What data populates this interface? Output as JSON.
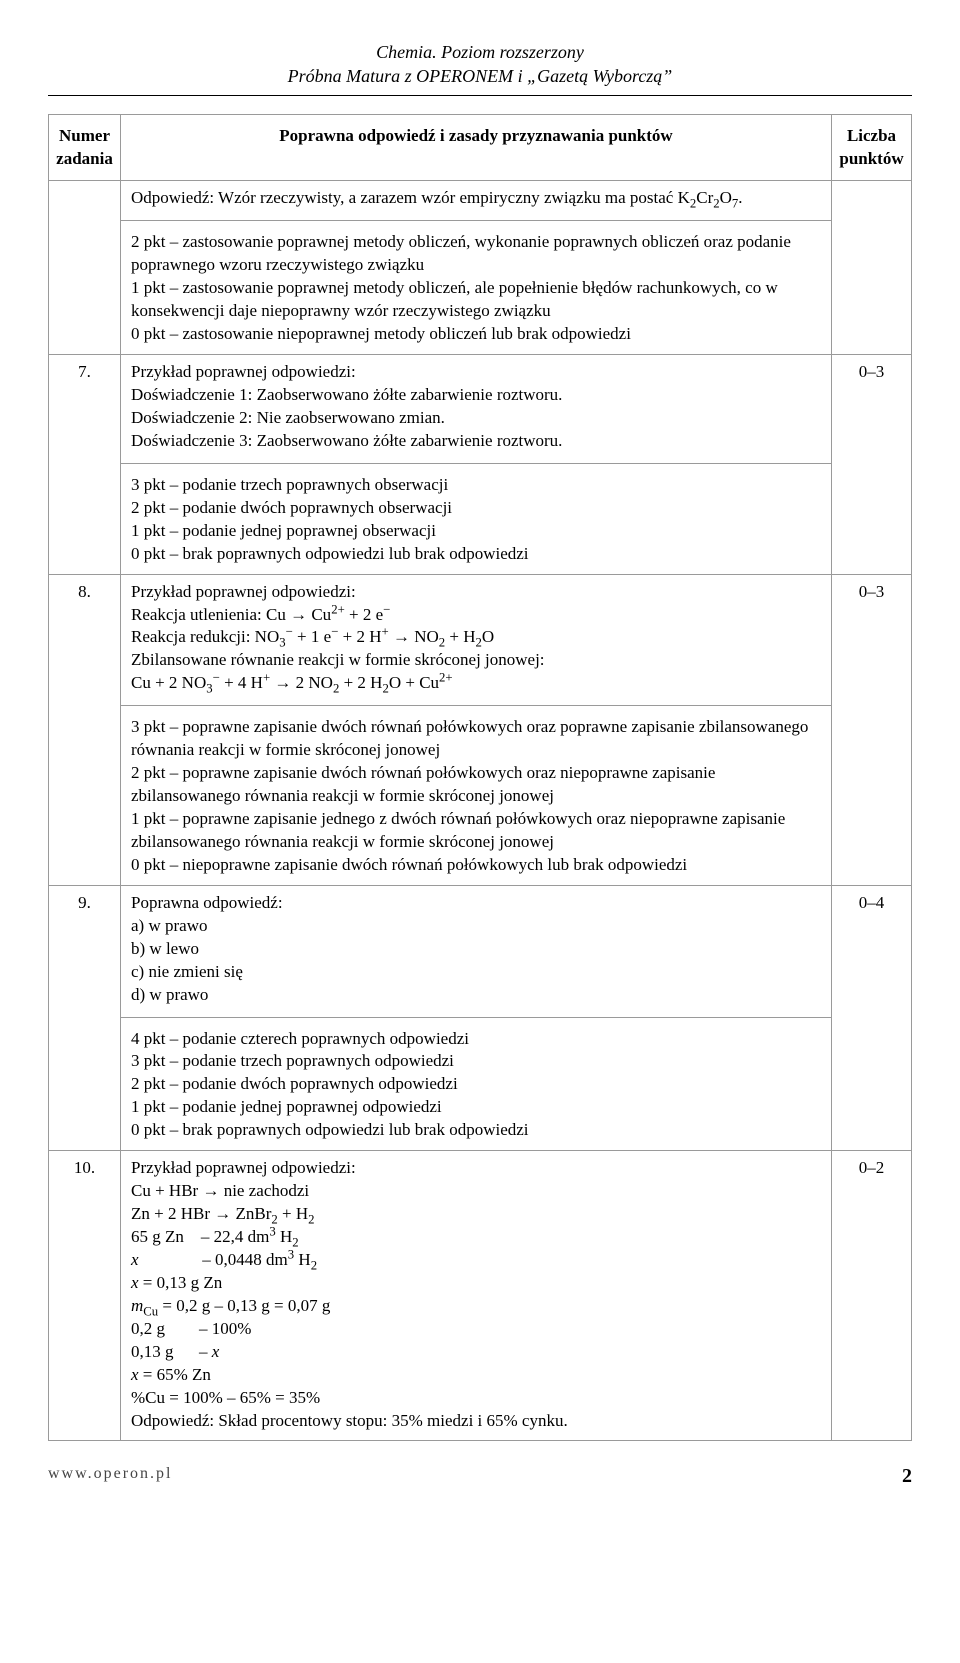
{
  "header": {
    "line1": "Chemia. Poziom rozszerzony",
    "line2": "Próbna Matura z OPERONEM i „Gazetą Wyborczą”"
  },
  "columns": {
    "num": "Numer zadania",
    "ans": "Poprawna odpowiedź i zasady przyznawania punktów",
    "pts": "Liczba punktów"
  },
  "rows": [
    {
      "num": "",
      "pts": "",
      "answer_html": "Odpowiedź: Wzór rzeczywisty, a zarazem wzór empiryczny związku ma postać K<sub>2</sub>Cr<sub>2</sub>O<sub>7</sub>.",
      "scoring_html": "2 pkt – zastosowanie poprawnej metody obliczeń, wykonanie poprawnych obliczeń oraz podanie poprawnego wzoru rzeczywistego związku<br>1 pkt – zastosowanie poprawnej metody obliczeń, ale popełnienie błędów rachunkowych, co w konsekwencji daje niepoprawny wzór rzeczywistego związku<br>0 pkt – zastosowanie niepoprawnej metody obliczeń lub brak odpowiedzi"
    },
    {
      "num": "7.",
      "pts": "0–3",
      "answer_html": "Przykład poprawnej odpowiedzi:<br>Doświadczenie 1: Zaobserwowano żółte zabarwienie roztworu.<br>Doświadczenie 2: Nie zaobserwowano zmian.<br>Doświadczenie 3: Zaobserwowano żółte zabarwienie roztworu.",
      "scoring_html": "3 pkt – podanie trzech poprawnych obserwacji<br>2 pkt – podanie dwóch poprawnych obserwacji<br>1 pkt – podanie jednej poprawnej obserwacji<br>0 pkt – brak poprawnych odpowiedzi lub brak odpowiedzi"
    },
    {
      "num": "8.",
      "pts": "0–3",
      "answer_html": "Przykład poprawnej odpowiedzi:<br>Reakcja utlenienia: Cu → Cu<sup>2+</sup> + 2 e<sup>−</sup><br>Reakcja redukcji: NO<sub>3</sub><sup>−</sup> + 1 e<sup>−</sup> + 2 H<sup>+</sup> → NO<sub>2</sub> + H<sub>2</sub>O<br>Zbilansowane równanie reakcji w formie skróconej jonowej:<br>Cu + 2 NO<sub>3</sub><sup>−</sup> + 4 H<sup>+</sup> → 2 NO<sub>2</sub> + 2 H<sub>2</sub>O + Cu<sup>2+</sup>",
      "scoring_html": "3 pkt – poprawne zapisanie dwóch równań połówkowych oraz poprawne zapisanie zbilansowanego równania reakcji w formie skróconej jonowej<br>2 pkt – poprawne zapisanie dwóch równań połówkowych oraz niepoprawne zapisanie zbilansowanego równania reakcji w formie skróconej jonowej<br>1 pkt – poprawne zapisanie jednego z dwóch równań połówkowych oraz niepoprawne zapisanie zbilansowanego równania reakcji w formie skróconej jonowej<br>0 pkt – niepoprawne zapisanie dwóch równań połówkowych lub brak odpowiedzi"
    },
    {
      "num": "9.",
      "pts": "0–4",
      "answer_html": "Poprawna odpowiedź:<br>a) w prawo<br>b) w lewo<br>c) nie zmieni się<br>d) w prawo",
      "scoring_html": "4 pkt – podanie czterech poprawnych odpowiedzi<br>3 pkt – podanie trzech poprawnych odpowiedzi<br>2 pkt – podanie dwóch poprawnych odpowiedzi<br>1 pkt – podanie jednej poprawnej odpowiedzi<br>0 pkt – brak poprawnych odpowiedzi lub brak odpowiedzi"
    },
    {
      "num": "10.",
      "pts": "0–2",
      "answer_html": "Przykład poprawnej odpowiedzi:<br>Cu + HBr → nie zachodzi<br>Zn + 2 HBr → ZnBr<sub>2</sub> + H<sub>2</sub><br>65 g Zn&nbsp;&nbsp;&nbsp;&nbsp;– 22,4 dm<sup>3</sup> H<sub>2</sub><br><i>x</i>&nbsp;&nbsp;&nbsp;&nbsp;&nbsp;&nbsp;&nbsp;&nbsp;&nbsp;&nbsp;&nbsp;&nbsp;&nbsp;&nbsp;&nbsp;– 0,0448 dm<sup>3</sup> H<sub>2</sub><br><i>x</i> = 0,13 g Zn<br><i>m</i><sub>Cu</sub> = 0,2 g – 0,13 g = 0,07 g<br>0,2 g&nbsp;&nbsp;&nbsp;&nbsp;&nbsp;&nbsp;&nbsp;&nbsp;– 100%<br>0,13 g&nbsp;&nbsp;&nbsp;&nbsp;&nbsp;&nbsp;– <i>x</i><br><i>x</i> = 65% Zn<br>%Cu = 100% – 65% = 35%<br>Odpowiedź: Skład procentowy stopu: 35% miedzi i 65% cynku.",
      "scoring_html": ""
    }
  ],
  "footer": {
    "url": "www.operon.pl",
    "page": "2"
  }
}
